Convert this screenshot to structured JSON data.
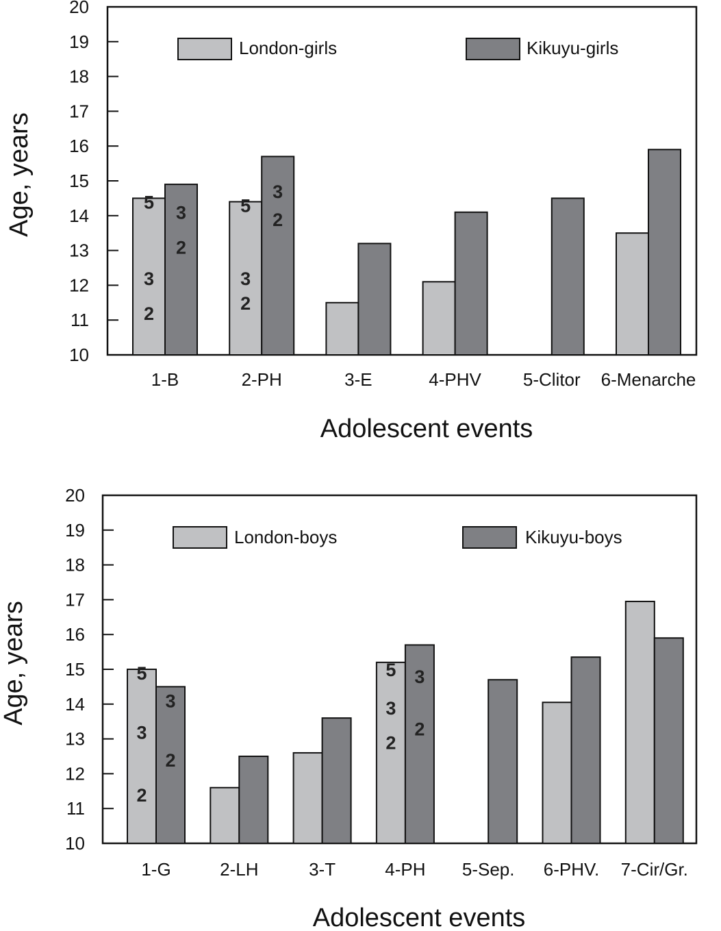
{
  "colors": {
    "london": "#c0c1c3",
    "kikuyu": "#7f8084",
    "stroke": "#111111"
  },
  "chart_data": [
    {
      "type": "bar",
      "xlabel": "Adolescent events",
      "ylabel": "Age, years",
      "ylim": [
        10,
        20
      ],
      "yticks": [
        "10",
        "11",
        "12",
        "13",
        "14",
        "15",
        "16",
        "17",
        "18",
        "19",
        "20"
      ],
      "legend_position": "top",
      "categories": [
        "1-B",
        "2-PH",
        "3-E",
        "4-PHV",
        "5-Clitor",
        "6-Menarche"
      ],
      "series": [
        {
          "name": "London-girls",
          "values": [
            14.5,
            14.4,
            11.5,
            12.1,
            null,
            13.5
          ]
        },
        {
          "name": "Kikuyu-girls",
          "values": [
            14.9,
            15.7,
            13.2,
            14.1,
            14.5,
            15.9
          ]
        }
      ],
      "annotations": [
        {
          "category": 0,
          "series": 0,
          "text": "5",
          "y": 14.4
        },
        {
          "category": 0,
          "series": 0,
          "text": "3",
          "y": 12.2
        },
        {
          "category": 0,
          "series": 0,
          "text": "2",
          "y": 11.2
        },
        {
          "category": 0,
          "series": 1,
          "text": "3",
          "y": 14.1
        },
        {
          "category": 0,
          "series": 1,
          "text": "2",
          "y": 13.1
        },
        {
          "category": 1,
          "series": 0,
          "text": "5",
          "y": 14.3
        },
        {
          "category": 1,
          "series": 0,
          "text": "3",
          "y": 12.2
        },
        {
          "category": 1,
          "series": 0,
          "text": "2",
          "y": 11.5
        },
        {
          "category": 1,
          "series": 1,
          "text": "3",
          "y": 14.7
        },
        {
          "category": 1,
          "series": 1,
          "text": "2",
          "y": 13.9
        }
      ]
    },
    {
      "type": "bar",
      "xlabel": "Adolescent events",
      "ylabel": "Age, years",
      "ylim": [
        10,
        20
      ],
      "yticks": [
        "10",
        "11",
        "12",
        "13",
        "14",
        "15",
        "16",
        "17",
        "18",
        "19",
        "20"
      ],
      "legend_position": "top",
      "categories": [
        "1-G",
        "2-LH",
        "3-T",
        "4-PH",
        "5-Sep.",
        "6-PHV.",
        "7-Cir/Gr."
      ],
      "series": [
        {
          "name": "London-boys",
          "values": [
            15.0,
            11.6,
            12.6,
            15.2,
            null,
            14.05,
            16.95
          ]
        },
        {
          "name": "Kikuyu-boys",
          "values": [
            14.5,
            12.5,
            13.6,
            15.7,
            14.7,
            15.35,
            15.9
          ]
        }
      ],
      "annotations": [
        {
          "category": 0,
          "series": 0,
          "text": "5",
          "y": 14.9
        },
        {
          "category": 0,
          "series": 0,
          "text": "3",
          "y": 13.2
        },
        {
          "category": 0,
          "series": 0,
          "text": "2",
          "y": 11.4
        },
        {
          "category": 0,
          "series": 1,
          "text": "3",
          "y": 14.1
        },
        {
          "category": 0,
          "series": 1,
          "text": "2",
          "y": 12.4
        },
        {
          "category": 3,
          "series": 0,
          "text": "5",
          "y": 15.0
        },
        {
          "category": 3,
          "series": 0,
          "text": "3",
          "y": 13.9
        },
        {
          "category": 3,
          "series": 0,
          "text": "2",
          "y": 12.9
        },
        {
          "category": 3,
          "series": 1,
          "text": "3",
          "y": 14.8
        },
        {
          "category": 3,
          "series": 1,
          "text": "2",
          "y": 13.3
        }
      ]
    }
  ]
}
